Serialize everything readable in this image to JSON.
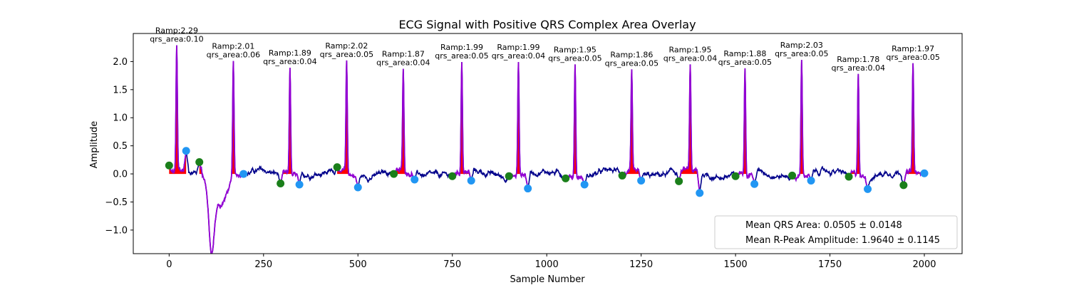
{
  "chart_data": {
    "type": "line",
    "title": "ECG Signal with Positive QRS Complex Area Overlay",
    "xlabel": "Sample Number",
    "ylabel": "Amplitude",
    "xlim": [
      -95,
      2100
    ],
    "ylim": [
      -1.42,
      2.5
    ],
    "xticks": [
      0,
      250,
      500,
      750,
      1000,
      1250,
      1500,
      1750,
      2000
    ],
    "yticks": [
      -1.0,
      -0.5,
      0.0,
      0.5,
      1.0,
      1.5,
      2.0
    ],
    "grid": false,
    "legend_position": "lower-right",
    "colors": {
      "ecg": "#00008b",
      "qrs_segment": "#9400d3",
      "area_fill": "#ff0000",
      "onset_marker": "#1a7f1a",
      "offset_marker": "#2196f3"
    },
    "beats": [
      {
        "r_peak_x": 20,
        "r_amp": 2.29,
        "qrs_area": 0.1,
        "label_ramp": "Ramp:2.29",
        "label_area": "qrs_area:0.10",
        "onset": [
          0,
          0.15
        ],
        "offset": [
          45,
          0.41
        ]
      },
      {
        "r_peak_x": 170,
        "r_amp": 2.01,
        "qrs_area": 0.06,
        "label_ramp": "Ramp:2.01",
        "label_area": "qrs_area:0.06",
        "onset": [
          80,
          0.21
        ],
        "offset": [
          197,
          0.0
        ]
      },
      {
        "r_peak_x": 320,
        "r_amp": 1.89,
        "qrs_area": 0.04,
        "label_ramp": "Ramp:1.89",
        "label_area": "qrs_area:0.04",
        "onset": [
          295,
          -0.17
        ],
        "offset": [
          345,
          -0.19
        ]
      },
      {
        "r_peak_x": 470,
        "r_amp": 2.02,
        "qrs_area": 0.05,
        "label_ramp": "Ramp:2.02",
        "label_area": "qrs_area:0.05",
        "onset": [
          445,
          0.12
        ],
        "offset": [
          500,
          -0.24
        ]
      },
      {
        "r_peak_x": 620,
        "r_amp": 1.87,
        "qrs_area": 0.04,
        "label_ramp": "Ramp:1.87",
        "label_area": "qrs_area:0.04",
        "onset": [
          595,
          0.0
        ],
        "offset": [
          650,
          -0.1
        ]
      },
      {
        "r_peak_x": 775,
        "r_amp": 1.99,
        "qrs_area": 0.05,
        "label_ramp": "Ramp:1.99",
        "label_area": "qrs_area:0.05",
        "onset": [
          750,
          -0.04
        ],
        "offset": [
          800,
          -0.12
        ]
      },
      {
        "r_peak_x": 925,
        "r_amp": 1.99,
        "qrs_area": 0.04,
        "label_ramp": "Ramp:1.99",
        "label_area": "qrs_area:0.04",
        "onset": [
          900,
          -0.04
        ],
        "offset": [
          950,
          -0.26
        ]
      },
      {
        "r_peak_x": 1075,
        "r_amp": 1.95,
        "qrs_area": 0.05,
        "label_ramp": "Ramp:1.95",
        "label_area": "qrs_area:0.05",
        "onset": [
          1050,
          -0.08
        ],
        "offset": [
          1100,
          -0.19
        ]
      },
      {
        "r_peak_x": 1225,
        "r_amp": 1.86,
        "qrs_area": 0.05,
        "label_ramp": "Ramp:1.86",
        "label_area": "qrs_area:0.05",
        "onset": [
          1200,
          -0.03
        ],
        "offset": [
          1250,
          -0.12
        ]
      },
      {
        "r_peak_x": 1380,
        "r_amp": 1.95,
        "qrs_area": 0.04,
        "label_ramp": "Ramp:1.95",
        "label_area": "qrs_area:0.04",
        "onset": [
          1350,
          -0.13
        ],
        "offset": [
          1405,
          -0.34
        ]
      },
      {
        "r_peak_x": 1525,
        "r_amp": 1.88,
        "qrs_area": 0.05,
        "label_ramp": "Ramp:1.88",
        "label_area": "qrs_area:0.05",
        "onset": [
          1500,
          -0.04
        ],
        "offset": [
          1550,
          -0.18
        ]
      },
      {
        "r_peak_x": 1675,
        "r_amp": 2.03,
        "qrs_area": 0.05,
        "label_ramp": "Ramp:2.03",
        "label_area": "qrs_area:0.05",
        "onset": [
          1650,
          -0.03
        ],
        "offset": [
          1700,
          -0.12
        ]
      },
      {
        "r_peak_x": 1825,
        "r_amp": 1.78,
        "qrs_area": 0.04,
        "label_ramp": "Ramp:1.78",
        "label_area": "qrs_area:0.04",
        "onset": [
          1800,
          -0.05
        ],
        "offset": [
          1850,
          -0.27
        ]
      },
      {
        "r_peak_x": 1970,
        "r_amp": 1.97,
        "qrs_area": 0.05,
        "label_ramp": "Ramp:1.97",
        "label_area": "qrs_area:0.05",
        "onset": [
          1945,
          -0.2
        ],
        "offset": [
          2000,
          0.01
        ]
      }
    ],
    "legend": [
      "Mean QRS Area: 0.0505 ± 0.0148",
      "Mean R-Peak Amplitude: 1.9640 ± 0.1145"
    ]
  }
}
